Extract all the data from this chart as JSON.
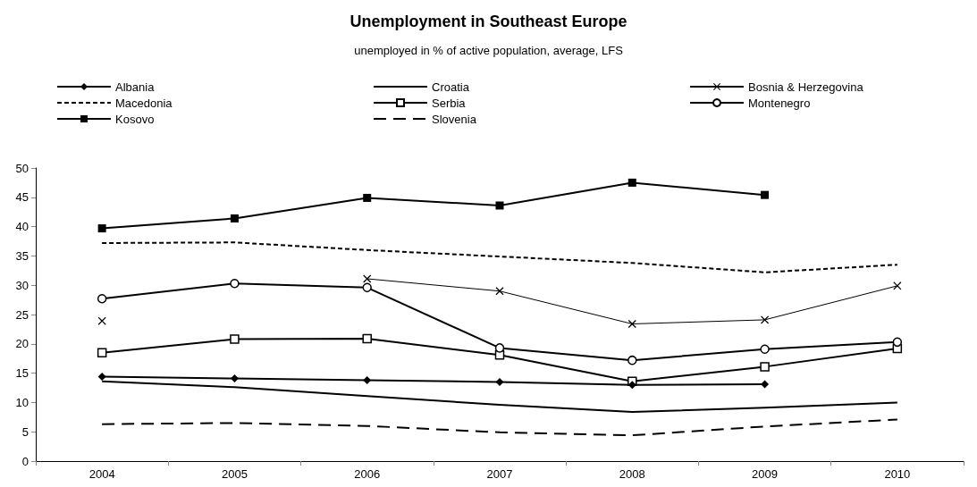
{
  "chart_data": {
    "type": "line",
    "title": "Unemployment in Southeast Europe",
    "subtitle": "unemployed in % of active population, average, LFS",
    "categories": [
      "2004",
      "2005",
      "2006",
      "2007",
      "2008",
      "2009",
      "2010"
    ],
    "series": [
      {
        "name": "Albania",
        "color": "#000000",
        "marker": "diamond",
        "line_style": "solid",
        "values": [
          14.4,
          14.1,
          13.8,
          13.5,
          13.0,
          13.1,
          null
        ]
      },
      {
        "name": "Croatia",
        "color": "#000000",
        "marker": "none",
        "line_style": "solid",
        "values": [
          13.6,
          12.6,
          11.1,
          9.6,
          8.4,
          9.1,
          10.0
        ]
      },
      {
        "name": "Bosnia & Herzegovina",
        "color": "#000000",
        "marker": "cross",
        "line_style": "solid",
        "values": [
          23.9,
          null,
          31.1,
          29.0,
          23.4,
          24.1,
          29.9
        ]
      },
      {
        "name": "Macedonia",
        "color": "#000000",
        "marker": "none",
        "line_style": "dotted",
        "values": [
          37.2,
          37.3,
          36.0,
          34.9,
          33.8,
          32.2,
          33.5
        ]
      },
      {
        "name": "Serbia",
        "color": "#000000",
        "marker": "square",
        "line_style": "solid",
        "values": [
          18.5,
          20.8,
          20.9,
          18.1,
          13.6,
          16.1,
          19.2
        ]
      },
      {
        "name": "Montenegro",
        "color": "#000000",
        "marker": "circle",
        "line_style": "solid",
        "values": [
          27.7,
          30.3,
          29.6,
          19.3,
          17.2,
          19.1,
          20.3
        ]
      },
      {
        "name": "Kosovo",
        "color": "#000000",
        "marker": "square",
        "line_style": "solid",
        "values": [
          39.7,
          41.4,
          44.9,
          43.6,
          47.5,
          45.4,
          null
        ]
      },
      {
        "name": "Slovenia",
        "color": "#000000",
        "marker": "none",
        "line_style": "dashed",
        "values": [
          6.3,
          6.5,
          6.0,
          4.9,
          4.4,
          5.9,
          7.1
        ]
      }
    ],
    "ylim": [
      0,
      50
    ],
    "yticks": [
      0,
      5,
      10,
      15,
      20,
      25,
      30,
      35,
      40,
      45,
      50
    ],
    "grid": false,
    "legend": "top"
  }
}
